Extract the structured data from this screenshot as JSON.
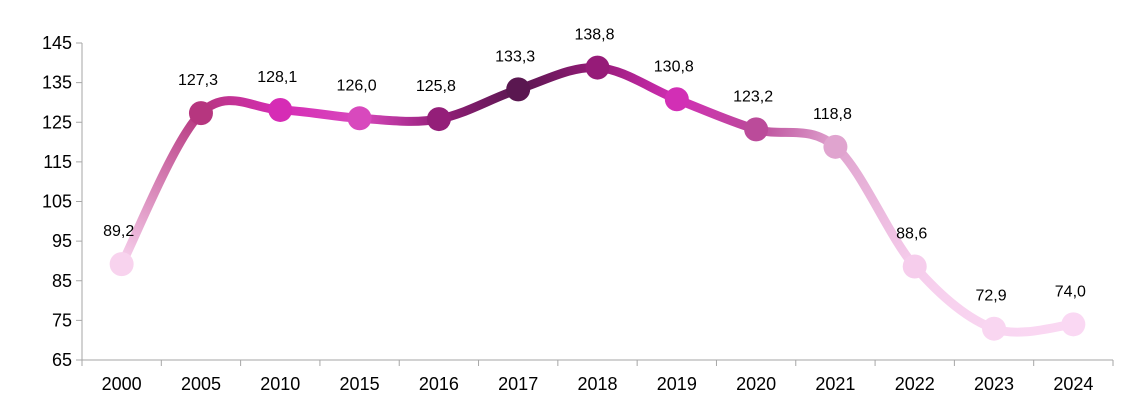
{
  "chart_data": {
    "type": "line",
    "title": "",
    "xlabel": "",
    "ylabel": "",
    "categories": [
      "2000",
      "2005",
      "2010",
      "2015",
      "2016",
      "2017",
      "2018",
      "2019",
      "2020",
      "2021",
      "2022",
      "2023",
      "2024"
    ],
    "values": [
      89.2,
      127.3,
      128.1,
      126.0,
      125.8,
      133.3,
      138.8,
      130.8,
      123.2,
      118.8,
      88.6,
      72.9,
      74.0
    ],
    "value_labels": [
      "89,2",
      "127,3",
      "128,1",
      "126,0",
      "125,8",
      "133,3",
      "138,8",
      "130,8",
      "123,2",
      "118,8",
      "88,6",
      "72,9",
      "74,0"
    ],
    "point_colors": [
      "#f8d3ee",
      "#b6367f",
      "#d62cb5",
      "#d849bd",
      "#941f79",
      "#5a1750",
      "#961b78",
      "#d22fb5",
      "#bb4b9a",
      "#e0a4cf",
      "#f6cdec",
      "#f9d6f1",
      "#fad8f3"
    ],
    "yticks": [
      65,
      75,
      85,
      95,
      105,
      115,
      125,
      135,
      145
    ],
    "ytick_labels": [
      "65",
      "75",
      "85",
      "95",
      "105",
      "115",
      "125",
      "135",
      "145"
    ],
    "ylim": [
      65,
      145
    ],
    "grid": false,
    "legend": "none"
  }
}
